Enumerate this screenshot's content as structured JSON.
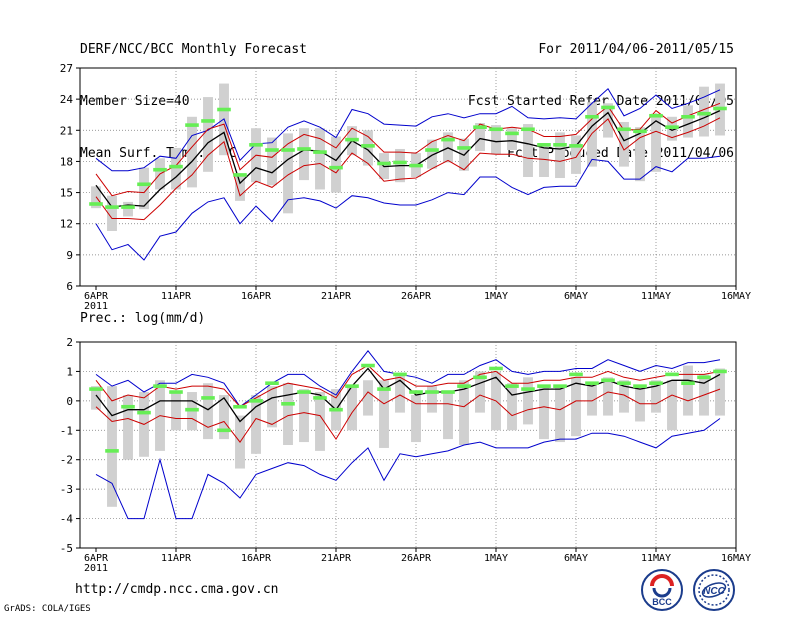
{
  "header": {
    "title": "DERF/NCC/BCC Monthly Forecast",
    "member_size": "Member Size=40",
    "variable": "Mean Surf. Temp.: °C",
    "period": "For 2011/04/06-2011/05/15",
    "refer_date": "Fcst Started Refer Date 2011/04/05",
    "produced_date": "Fcst Produced Date 2011/04/06"
  },
  "footer": {
    "url": "http://cmdp.ncc.cma.gov.cn",
    "credit": "GrADS: COLA/IGES"
  },
  "logos": {
    "left": "BCC",
    "right": "NCC"
  },
  "colors": {
    "ensemble_range": "#0000cc",
    "spread": "#cc0000",
    "mean": "#000000",
    "member_bar": "#d0d0d0",
    "member_mark": "#66ee55",
    "grid": "#777777"
  },
  "chart_data": [
    {
      "type": "line",
      "title": "Mean Surf. Temp.: °C",
      "x_tick_labels": [
        "6APR",
        "11APR",
        "16APR",
        "21APR",
        "26APR",
        "1MAY",
        "6MAY",
        "11MAY",
        "16MAY"
      ],
      "x_year_label": "2011",
      "ylim": [
        6,
        27
      ],
      "y_ticks": [
        6,
        9,
        12,
        15,
        18,
        21,
        24,
        27
      ],
      "series": [
        {
          "name": "ensemble max",
          "values": [
            18.3,
            17.1,
            17.1,
            17.4,
            18.5,
            18.3,
            20.5,
            21.0,
            22.1,
            18.1,
            19.7,
            19.8,
            21.3,
            21.9,
            21.3,
            20.3,
            23.0,
            22.6,
            21.6,
            21.5,
            21.4,
            22.3,
            22.6,
            22.2,
            22.6,
            22.6,
            23.3,
            22.2,
            22.1,
            22.2,
            22.1,
            23.6,
            25.0,
            22.4,
            23.1,
            24.4,
            23.1,
            23.6,
            24.2,
            24.9
          ]
        },
        {
          "name": "ensemble min",
          "values": [
            12.0,
            9.5,
            10.0,
            8.5,
            10.8,
            11.2,
            13.0,
            14.1,
            14.5,
            12.0,
            13.7,
            12.2,
            14.3,
            14.5,
            14.2,
            13.5,
            14.7,
            14.5,
            14.0,
            13.8,
            13.8,
            14.3,
            15.0,
            14.8,
            16.5,
            16.5,
            15.5,
            14.8,
            15.5,
            15.6,
            15.6,
            18.2,
            18.0,
            16.3,
            16.3,
            17.5,
            17.0,
            18.3,
            18.3,
            18.5
          ]
        },
        {
          "name": "mean + spread",
          "values": [
            16.8,
            14.7,
            15.1,
            15.0,
            16.8,
            17.6,
            19.4,
            21.1,
            21.6,
            17.2,
            18.6,
            18.4,
            19.7,
            20.6,
            20.2,
            19.3,
            21.2,
            20.4,
            18.9,
            18.9,
            18.8,
            19.9,
            20.5,
            20.0,
            21.6,
            21.1,
            21.3,
            21.1,
            20.4,
            20.4,
            20.6,
            22.1,
            23.3,
            21.0,
            21.1,
            22.9,
            21.7,
            22.4,
            23.0,
            23.6
          ]
        },
        {
          "name": "ensemble mean",
          "values": [
            15.7,
            13.6,
            13.8,
            13.7,
            15.3,
            16.5,
            18.0,
            19.8,
            20.8,
            15.9,
            17.4,
            16.9,
            18.2,
            19.1,
            19.0,
            18.1,
            20.0,
            19.1,
            17.5,
            17.6,
            17.6,
            18.6,
            19.3,
            18.6,
            20.2,
            19.9,
            20.0,
            19.7,
            19.3,
            19.2,
            19.5,
            21.4,
            22.7,
            20.0,
            20.7,
            21.9,
            21.0,
            21.6,
            22.2,
            22.9
          ]
        },
        {
          "name": "mean - spread",
          "values": [
            14.6,
            12.5,
            12.5,
            12.4,
            13.8,
            15.4,
            16.7,
            18.6,
            19.9,
            14.7,
            16.1,
            15.5,
            16.7,
            17.6,
            17.8,
            16.9,
            18.8,
            17.8,
            16.1,
            16.3,
            16.4,
            17.3,
            18.1,
            17.2,
            18.8,
            18.7,
            18.7,
            18.3,
            18.2,
            18.0,
            18.4,
            20.7,
            22.1,
            19.1,
            20.3,
            20.9,
            20.3,
            20.8,
            21.4,
            22.2
          ]
        }
      ],
      "member_ranges": {
        "low": [
          13.5,
          11.3,
          12.7,
          13.4,
          15.3,
          15.3,
          15.5,
          17.0,
          18.6,
          14.2,
          16.0,
          15.7,
          13.0,
          16.2,
          15.3,
          15.0,
          18.6,
          17.6,
          16.3,
          16.0,
          16.5,
          17.3,
          17.9,
          17.1,
          19.0,
          18.7,
          19.1,
          16.5,
          16.5,
          16.4,
          16.8,
          17.5,
          20.3,
          17.5,
          16.1,
          17.0,
          20.0,
          20.3,
          20.4,
          20.5
        ],
        "high": [
          15.6,
          14.7,
          14.1,
          17.4,
          18.3,
          19.3,
          22.3,
          24.2,
          25.5,
          16.8,
          21.2,
          20.3,
          20.7,
          21.2,
          21.2,
          20.4,
          21.4,
          21.0,
          18.8,
          19.2,
          18.8,
          20.1,
          20.8,
          20.2,
          21.7,
          21.5,
          21.2,
          21.6,
          19.5,
          20.8,
          20.5,
          23.7,
          23.6,
          21.8,
          21.3,
          22.6,
          22.3,
          23.4,
          25.2,
          25.5
        ]
      },
      "markers": [
        13.9,
        13.6,
        13.6,
        15.8,
        17.2,
        17.5,
        21.5,
        21.9,
        23.0,
        16.7,
        19.6,
        19.1,
        19.1,
        19.2,
        18.9,
        17.4,
        20.1,
        19.5,
        17.8,
        17.9,
        17.6,
        19.1,
        20.1,
        19.3,
        21.3,
        21.1,
        20.7,
        21.1,
        19.6,
        19.6,
        19.5,
        22.3,
        23.2,
        21.1,
        20.9,
        22.4,
        21.3,
        22.3,
        22.6,
        23.1
      ]
    },
    {
      "type": "line",
      "title": "Prec.: log(mm/d)",
      "x_tick_labels": [
        "6APR",
        "11APR",
        "16APR",
        "21APR",
        "26APR",
        "1MAY",
        "6MAY",
        "11MAY",
        "16MAY"
      ],
      "x_year_label": "2011",
      "ylim": [
        -5,
        2
      ],
      "y_ticks": [
        -5,
        -4,
        -3,
        -2,
        -1,
        0,
        1,
        2
      ],
      "series": [
        {
          "name": "ensemble max",
          "values": [
            0.9,
            0.5,
            0.7,
            0.3,
            0.6,
            0.6,
            0.9,
            0.8,
            0.6,
            -0.2,
            0.2,
            0.6,
            0.9,
            0.9,
            0.5,
            0.2,
            1.0,
            1.7,
            1.0,
            0.9,
            0.8,
            0.6,
            0.9,
            0.9,
            1.2,
            1.4,
            1.0,
            0.9,
            1.0,
            1.0,
            1.1,
            1.1,
            1.4,
            1.2,
            1.0,
            1.2,
            1.1,
            1.3,
            1.3,
            1.4
          ]
        },
        {
          "name": "ensemble min",
          "values": [
            -2.5,
            -2.8,
            -4.0,
            -4.0,
            -2.0,
            -4.0,
            -4.0,
            -2.5,
            -2.8,
            -3.3,
            -2.5,
            -2.3,
            -2.1,
            -2.2,
            -2.5,
            -2.7,
            -2.1,
            -1.6,
            -2.7,
            -1.8,
            -1.9,
            -1.8,
            -1.7,
            -1.5,
            -1.4,
            -1.6,
            -1.6,
            -1.6,
            -1.4,
            -1.3,
            -1.3,
            -1.1,
            -1.1,
            -1.2,
            -1.4,
            -1.6,
            -1.2,
            -1.1,
            -1.0,
            -0.6
          ]
        },
        {
          "name": "mean + spread",
          "values": [
            0.7,
            0.0,
            0.2,
            0.1,
            0.5,
            0.4,
            0.5,
            0.5,
            0.4,
            -0.2,
            0.1,
            0.4,
            0.6,
            0.5,
            0.4,
            0.1,
            0.9,
            1.2,
            0.7,
            0.8,
            0.5,
            0.5,
            0.6,
            0.6,
            0.9,
            1.0,
            0.6,
            0.6,
            0.7,
            0.7,
            0.8,
            0.8,
            1.0,
            0.8,
            0.7,
            0.8,
            0.9,
            0.9,
            0.9,
            1.0
          ]
        },
        {
          "name": "ensemble mean",
          "values": [
            0.2,
            -0.5,
            -0.3,
            -0.3,
            0.0,
            0.0,
            0.0,
            -0.3,
            0.1,
            -0.7,
            -0.2,
            0.1,
            0.2,
            0.3,
            0.2,
            -0.3,
            0.5,
            1.1,
            0.4,
            0.7,
            0.2,
            0.3,
            0.3,
            0.4,
            0.6,
            0.8,
            0.2,
            0.3,
            0.4,
            0.4,
            0.6,
            0.5,
            0.7,
            0.5,
            0.4,
            0.5,
            0.7,
            0.7,
            0.6,
            0.9
          ]
        },
        {
          "name": "mean - spread",
          "values": [
            -0.2,
            -0.7,
            -0.6,
            -0.8,
            -0.5,
            -0.6,
            -0.6,
            -0.9,
            -0.7,
            -1.4,
            -0.6,
            -0.8,
            -0.5,
            -0.4,
            -0.5,
            -1.3,
            -0.4,
            0.3,
            -0.1,
            0.2,
            -0.1,
            -0.1,
            -0.1,
            -0.2,
            0.2,
            0.0,
            -0.5,
            -0.3,
            -0.2,
            -0.3,
            0.0,
            0.0,
            0.3,
            0.2,
            -0.1,
            -0.1,
            0.2,
            0.0,
            0.2,
            0.4
          ]
        }
      ],
      "member_ranges": {
        "low": [
          -0.3,
          -3.6,
          -2.0,
          -1.9,
          -1.7,
          -1.0,
          -1.0,
          -1.3,
          -1.3,
          -2.3,
          -1.8,
          -0.9,
          -1.5,
          -1.4,
          -1.7,
          -1.0,
          -1.0,
          -0.5,
          -1.6,
          -0.4,
          -1.4,
          -0.4,
          -1.3,
          -1.5,
          -0.4,
          -1.0,
          -1.0,
          -0.8,
          -1.3,
          -1.4,
          -1.2,
          -0.5,
          -0.5,
          -0.4,
          -0.7,
          -0.4,
          -1.0,
          -0.5,
          -0.5,
          -0.5
        ],
        "high": [
          0.5,
          0.5,
          0.2,
          0.3,
          0.7,
          0.3,
          0.3,
          0.6,
          0.2,
          -0.5,
          0.2,
          0.5,
          0.6,
          0.4,
          0.3,
          0.4,
          0.5,
          0.7,
          0.7,
          0.9,
          0.2,
          0.5,
          0.3,
          0.7,
          1.0,
          1.0,
          0.6,
          0.8,
          0.5,
          0.5,
          0.8,
          0.6,
          0.8,
          0.7,
          0.5,
          0.7,
          0.7,
          1.2,
          0.9,
          1.1
        ]
      },
      "markers": [
        0.4,
        -1.7,
        -0.2,
        -0.4,
        0.5,
        0.3,
        -0.3,
        0.1,
        -1.0,
        -0.2,
        0.0,
        0.6,
        -0.1,
        0.3,
        0.1,
        -0.3,
        0.5,
        1.2,
        0.4,
        0.9,
        0.3,
        0.3,
        0.3,
        0.5,
        0.8,
        1.1,
        0.5,
        0.4,
        0.5,
        0.5,
        0.9,
        0.6,
        0.7,
        0.6,
        0.5,
        0.6,
        0.9,
        0.6,
        0.8,
        1.0
      ]
    }
  ]
}
